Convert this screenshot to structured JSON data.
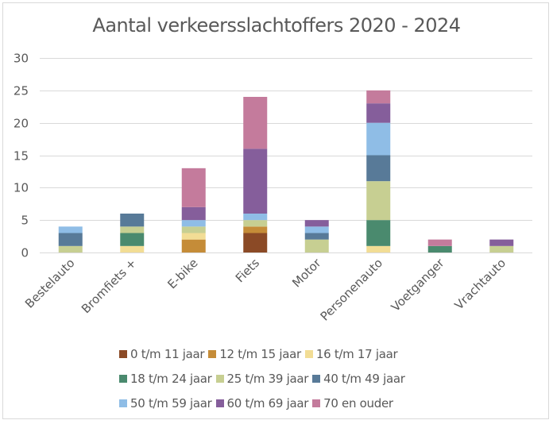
{
  "chart_data": {
    "type": "bar",
    "stacked": true,
    "title": "Aantal verkeersslachtoffers 2020 - 2024",
    "xlabel": "",
    "ylabel": "",
    "ylim": [
      0,
      30
    ],
    "yticks": [
      0,
      5,
      10,
      15,
      20,
      25,
      30
    ],
    "grid": true,
    "legend_position": "bottom",
    "categories": [
      "Bestelauto",
      "Bromfiets +",
      "E-bike",
      "Fiets",
      "Motor",
      "Personenauto",
      "Voetganger",
      "Vrachtauto"
    ],
    "series": [
      {
        "name": "0 t/m 11 jaar",
        "color": "#8b4a26",
        "values": [
          0,
          0,
          0,
          3,
          0,
          0,
          0,
          0
        ]
      },
      {
        "name": "12 t/m 15 jaar",
        "color": "#c58c38",
        "values": [
          0,
          0,
          2,
          1,
          0,
          0,
          0,
          0
        ]
      },
      {
        "name": "16 t/m 17 jaar",
        "color": "#f2dd95",
        "values": [
          0,
          1,
          1,
          0,
          0,
          1,
          0,
          0
        ]
      },
      {
        "name": "18 t/m 24 jaar",
        "color": "#4a8a6e",
        "values": [
          0,
          2,
          0,
          0,
          0,
          4,
          1,
          0
        ]
      },
      {
        "name": "25 t/m 39 jaar",
        "color": "#c7cf92",
        "values": [
          1,
          1,
          1,
          1,
          2,
          6,
          0,
          1
        ]
      },
      {
        "name": "40 t/m 49 jaar",
        "color": "#587a98",
        "values": [
          2,
          2,
          0,
          0,
          1,
          4,
          0,
          0
        ]
      },
      {
        "name": "50 t/m 59 jaar",
        "color": "#8fbde6",
        "values": [
          1,
          0,
          1,
          1,
          1,
          5,
          0,
          0
        ]
      },
      {
        "name": "60 t/m 69 jaar",
        "color": "#855e9b",
        "values": [
          0,
          0,
          2,
          10,
          1,
          3,
          0,
          1
        ]
      },
      {
        "name": "70 en ouder",
        "color": "#c47b9c",
        "values": [
          0,
          0,
          6,
          8,
          0,
          2,
          1,
          0
        ]
      }
    ]
  }
}
